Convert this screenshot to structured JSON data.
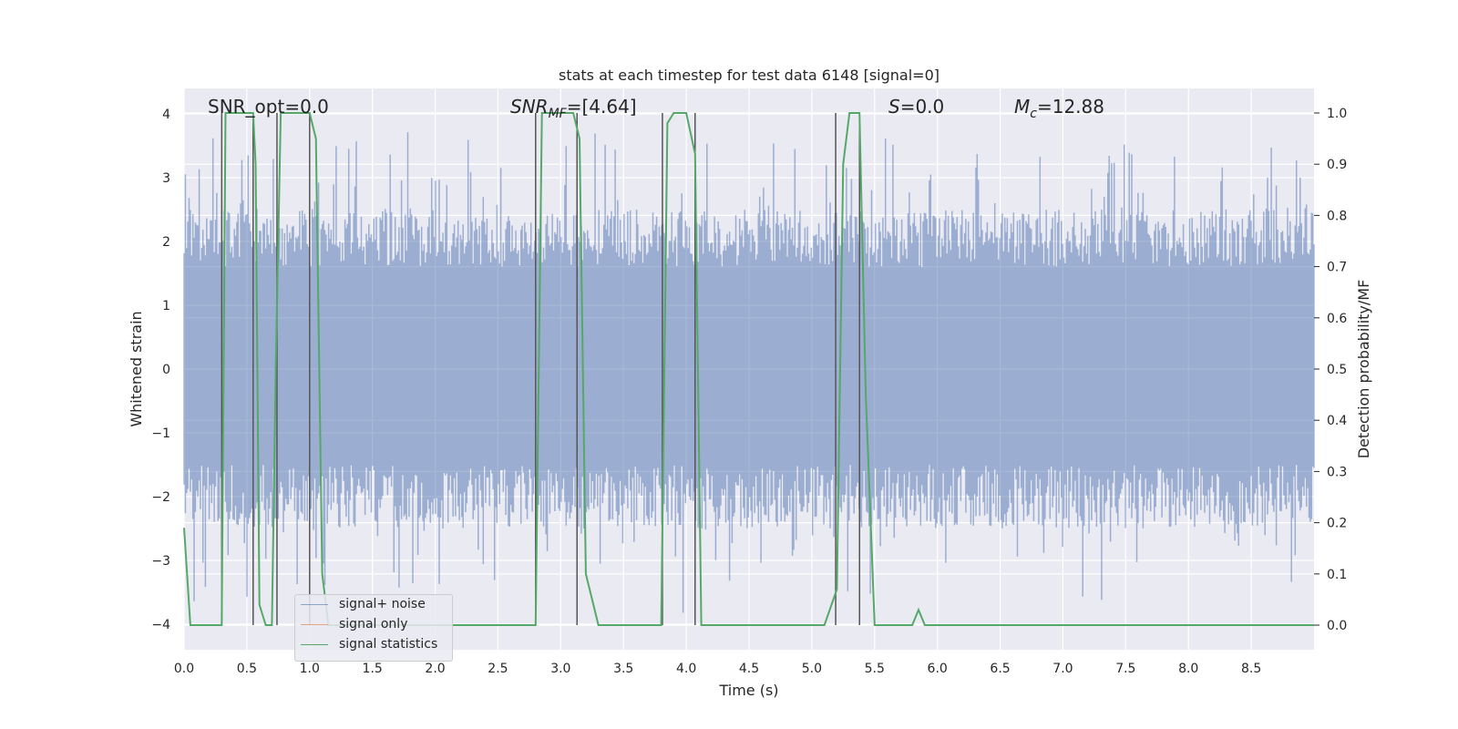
{
  "chart_data": {
    "type": "line",
    "title": "stats at each timestep for test data 6148 [signal=0]",
    "xlabel": "Time (s)",
    "ylabel_left": "Whitened strain",
    "ylabel_right": "Detection probability/MF",
    "xlim": [
      0,
      9.0
    ],
    "ylim_left": [
      -4.4,
      4.4
    ],
    "ylim_right": [
      -0.048,
      1.048
    ],
    "x_ticks": [
      "0.0",
      "0.5",
      "1.0",
      "1.5",
      "2.0",
      "2.5",
      "3.0",
      "3.5",
      "4.0",
      "4.5",
      "5.0",
      "5.5",
      "6.0",
      "6.5",
      "7.0",
      "7.5",
      "8.0",
      "8.5"
    ],
    "y_ticks_left": [
      "4",
      "3",
      "2",
      "1",
      "0",
      "−1",
      "−2",
      "−3",
      "−4"
    ],
    "y_ticks_right": [
      "1.0",
      "0.9",
      "0.8",
      "0.7",
      "0.6",
      "0.5",
      "0.4",
      "0.3",
      "0.2",
      "0.1",
      "0.0"
    ],
    "grid": true,
    "legend_position": "lower-left",
    "annotations": {
      "snr_opt": "SNR_opt=0.0",
      "snr_mf_name": "SNR",
      "snr_mf_sub": "MF",
      "snr_mf_value": "=[4.64]",
      "s_name": "S",
      "s_value": "=0.0",
      "mc_name": "M",
      "mc_sub": "c",
      "mc_value": "=12.88"
    },
    "series": [
      {
        "name": "signal+ noise",
        "color": "#4c72b0",
        "description_noise_band": [
          -2.5,
          2.5
        ],
        "peak_range": [
          -4.0,
          4.0
        ]
      },
      {
        "name": "signal only",
        "color": "#dd8452",
        "values": []
      },
      {
        "name": "signal statistics",
        "color": "#55a868",
        "x": [
          0.0,
          0.05,
          0.1,
          0.15,
          0.2,
          0.25,
          0.3,
          0.33,
          0.36,
          0.4,
          0.45,
          0.5,
          0.55,
          0.57,
          0.6,
          0.65,
          0.7,
          0.73,
          0.77,
          0.8,
          0.85,
          0.9,
          0.95,
          1.0,
          1.05,
          1.1,
          1.15,
          1.2,
          1.5,
          2.0,
          2.5,
          2.7,
          2.8,
          2.85,
          2.9,
          3.0,
          3.05,
          3.1,
          3.15,
          3.2,
          3.3,
          3.5,
          3.7,
          3.8,
          3.85,
          3.9,
          3.95,
          4.0,
          4.07,
          4.12,
          4.2,
          4.5,
          5.0,
          5.1,
          5.2,
          5.25,
          5.3,
          5.38,
          5.43,
          5.5,
          5.8,
          5.85,
          5.9,
          5.95,
          6.0,
          6.5,
          7.0,
          7.5,
          7.6,
          7.7,
          8.0,
          8.5,
          9.0
        ],
        "values": [
          0.19,
          0.0,
          0.0,
          0.0,
          0.0,
          0.0,
          0.0,
          1.0,
          1.0,
          1.0,
          1.0,
          1.0,
          1.0,
          0.9,
          0.04,
          0.0,
          0.0,
          0.5,
          1.0,
          1.0,
          1.0,
          1.0,
          1.0,
          1.0,
          0.95,
          0.1,
          0.0,
          0.0,
          0.0,
          0.0,
          0.0,
          0.0,
          0.0,
          1.0,
          1.0,
          1.0,
          1.0,
          1.0,
          0.95,
          0.1,
          0.0,
          0.0,
          0.0,
          0.0,
          0.98,
          1.0,
          1.0,
          1.0,
          0.92,
          0.0,
          0.0,
          0.0,
          0.0,
          0.0,
          0.07,
          0.9,
          1.0,
          1.0,
          0.45,
          0.0,
          0.0,
          0.03,
          0.0,
          0.0,
          0.0,
          0.0,
          0.0,
          0.0,
          0.0,
          0.0,
          0.0,
          0.0,
          0.0
        ]
      },
      {
        "name": "detection markers",
        "color": "#555555",
        "x": [
          0.3,
          0.55,
          0.74,
          1.0,
          2.8,
          3.13,
          3.81,
          4.07,
          5.19,
          5.38
        ]
      }
    ]
  }
}
